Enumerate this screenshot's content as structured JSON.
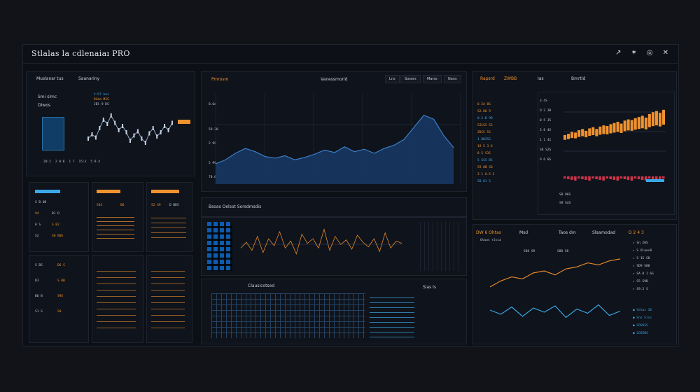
{
  "app": {
    "title": "Stlalas la cdlenaiaı PRO"
  },
  "titlebar": {
    "icons": [
      "pin-icon",
      "star-icon",
      "settings-icon",
      "close-icon"
    ],
    "glyphs": [
      "↗",
      "✶",
      "◎",
      "✕"
    ]
  },
  "left_panel": {
    "tabs": [
      "Muslanar tus",
      "Saanariny"
    ],
    "chart_label": "Smi slmc",
    "chart_sub": "Diwos",
    "legend_lines": [
      "t:D7 bas",
      "DLba M2S",
      "JBl 9 DS"
    ],
    "axis_labels": [
      "20:2",
      "2 0:8",
      "1 7",
      "15:3",
      "5 9.4"
    ]
  },
  "center_top": {
    "tabs": [
      "Lns",
      "Sosers",
      "Marss",
      "Nans"
    ],
    "title": "Vanessmorid",
    "tag": "Pmrosm",
    "y_labels": [
      "8.6d",
      "59.20",
      "2 99",
      "5 99",
      "70.0"
    ]
  },
  "center_mid": {
    "title": "Bsoas Oelsot Sorsdmsdis"
  },
  "center_bottom": {
    "title": "Clausicotsed",
    "side": "Sias ls"
  },
  "right_top": {
    "tabs": [
      "Rapsrd",
      "ZWBB",
      "Ias",
      "Bmrtld"
    ],
    "list": [
      "0 2A 8S",
      "S2.86 9",
      "0 2.B 9B",
      "SI1SS SS",
      "ZDS5 5S",
      "1 0B2SS",
      "19 5 3 6",
      "0 S S3S",
      "5 SS5 BS",
      "S9 0B S8",
      "3 1 6.5 S",
      "SB.81 S"
    ],
    "axis": [
      "3 4S",
      "O 2 3B",
      "0 5 35",
      "3 8 4S",
      "1 1 41",
      "SR S2S",
      "9 6 8S"
    ],
    "legend": [
      "S8 86S",
      "S9 S4S"
    ]
  },
  "right_bottom": {
    "tabs": [
      "DW 6 Ohtas",
      "Msd",
      "Taos dm",
      "Slsamodad",
      "D 2 4 3"
    ],
    "sub": "Otaus slsca",
    "legend": [
      "S88 S9",
      "S88 S8"
    ],
    "list": [
      "Sn 20S",
      "S Olaes8",
      "S 1S S8",
      "SD9 S88",
      "SA 0 1 6S",
      "S5 S9B",
      "S9.5 S"
    ],
    "bottom_list": [
      "Salas 36",
      "Sno Slss",
      "SOSOSS",
      "SOSSBS"
    ]
  },
  "bottom_left_tables": {
    "t1_head": [
      "S B 0B",
      "S4S",
      "B6"
    ],
    "t1_rows": [
      [
        "94",
        "B1 D"
      ],
      [
        "6 S",
        "S B2"
      ],
      [
        "S2",
        "S0 B0S"
      ]
    ],
    "t2_head": [
      "S2 S9",
      "D BDS"
    ],
    "t2_rows": [
      [
        "S BS",
        "D6 S"
      ],
      [
        "D3",
        "S 0B"
      ],
      [
        "B6 B",
        "S9S"
      ],
      [
        "S1 S",
        "S0"
      ]
    ]
  },
  "colors": {
    "accent_orange": "#f0922e",
    "accent_blue": "#3aa8e8",
    "bg": "#0c0f15"
  },
  "chart_data": [
    {
      "type": "line",
      "title": "Smi slmc",
      "values": [
        30,
        34,
        31,
        40,
        48,
        44,
        52,
        45,
        38,
        42,
        36,
        28,
        33,
        37,
        30,
        26,
        35,
        40,
        32,
        36,
        42,
        38,
        45
      ]
    },
    {
      "type": "area",
      "title": "Vanessmorid",
      "values": [
        25,
        30,
        38,
        44,
        40,
        34,
        32,
        35,
        30,
        33,
        37,
        42,
        39,
        46,
        40,
        43,
        38,
        44,
        48,
        55,
        70,
        85,
        80,
        60,
        45
      ]
    },
    {
      "type": "line",
      "title": "Bsoas Oelsot Sorsdmsdis",
      "values": [
        30,
        35,
        28,
        40,
        26,
        38,
        32,
        44,
        30,
        36,
        25,
        42,
        34,
        38,
        30,
        46,
        28,
        40,
        33,
        37,
        29,
        41,
        35,
        31,
        38,
        27,
        43,
        30,
        36,
        34
      ]
    },
    {
      "type": "bar",
      "title": "Rapsrd",
      "values": [
        20,
        22,
        25,
        24,
        28,
        30,
        27,
        31,
        33,
        30,
        34,
        36,
        35,
        38,
        40,
        42,
        39,
        44,
        46,
        45,
        48,
        50,
        52,
        49,
        55,
        58,
        60,
        57,
        62
      ]
    },
    {
      "type": "line",
      "title": "DW 6 Ohtas",
      "series": [
        {
          "name": "S88 S9",
          "values": [
            20,
            26,
            30,
            28,
            34,
            36,
            32,
            38,
            40,
            44,
            42,
            46,
            48
          ]
        },
        {
          "name": "S88 S8",
          "values": [
            22,
            18,
            25,
            16,
            24,
            20,
            26,
            15,
            23,
            19,
            27,
            17,
            21
          ]
        }
      ]
    }
  ]
}
